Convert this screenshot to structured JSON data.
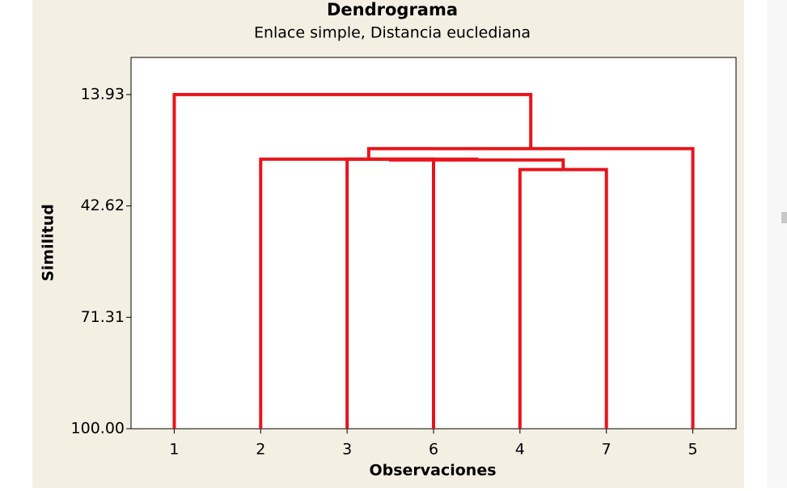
{
  "chart_data": {
    "type": "dendrogram",
    "title": "Dendrograma",
    "subtitle": "Enlace simple, Distancia euclediana",
    "x_label": "Observaciones",
    "y_label": "Similitud",
    "categories": [
      "1",
      "2",
      "3",
      "6",
      "4",
      "7",
      "5"
    ],
    "merges": [
      {
        "left": 2,
        "right": 3,
        "height": 30.56
      },
      {
        "left": 4,
        "right": 5,
        "height": 33.26
      },
      {
        "left": 7,
        "right": 8,
        "height": 30.77
      },
      {
        "left": 1,
        "right": 9,
        "height": 30.56
      },
      {
        "left": 10,
        "right": 6,
        "height": 27.86
      },
      {
        "left": 0,
        "right": 11,
        "height": 13.93
      }
    ],
    "color": "#e8141b",
    "ylim": [
      100,
      4.37
    ],
    "yticks": [
      13.93,
      42.62,
      71.31,
      {
        "value": 100,
        "label": "100.00"
      }
    ]
  }
}
